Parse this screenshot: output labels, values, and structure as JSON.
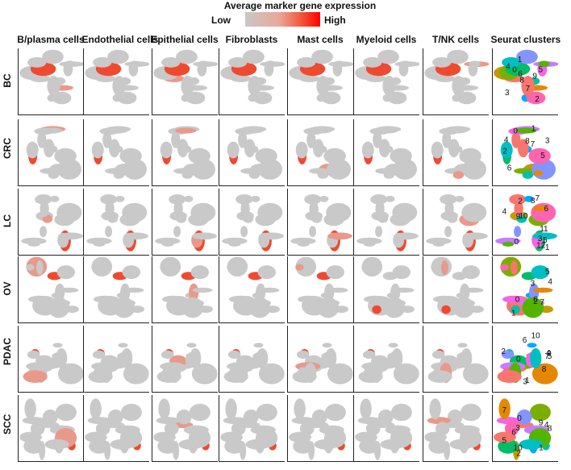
{
  "legend": {
    "title": "Average marker gene expression",
    "low_label": "Low",
    "high_label": "High",
    "colors": [
      "#c8c8c8",
      "#ff0000"
    ]
  },
  "chart_data": {
    "type": "scatter",
    "title": "Average marker gene expression",
    "columns": [
      "B/plasma cells",
      "Endothelial cells",
      "Epithelial cells",
      "Fibroblasts",
      "Mast cells",
      "Myeloid cells",
      "T/NK cells",
      "Seurat clusters"
    ],
    "rows": [
      "BC",
      "CRC",
      "LC",
      "OV",
      "PDAC",
      "SCC"
    ],
    "cluster_labels": {
      "BC": [
        "0",
        "1",
        "2",
        "3",
        "4",
        "5",
        "6",
        "7",
        "8",
        "9"
      ],
      "CRC": [
        "0",
        "1",
        "2",
        "3",
        "4",
        "5",
        "6",
        "7",
        "8"
      ],
      "LC": [
        "0",
        "1",
        "2",
        "3",
        "4",
        "5",
        "6",
        "7",
        "8",
        "9",
        "10",
        "11",
        "12"
      ],
      "OV": [
        "0",
        "1",
        "2",
        "3",
        "4",
        "5",
        "6",
        "7"
      ],
      "PDAC": [
        "0",
        "1",
        "2",
        "3",
        "4",
        "5",
        "6",
        "7",
        "8",
        "9",
        "10"
      ],
      "SCC": [
        "0",
        "1",
        "2",
        "3",
        "4",
        "5",
        "6",
        "7",
        "8",
        "9",
        "10"
      ]
    }
  }
}
